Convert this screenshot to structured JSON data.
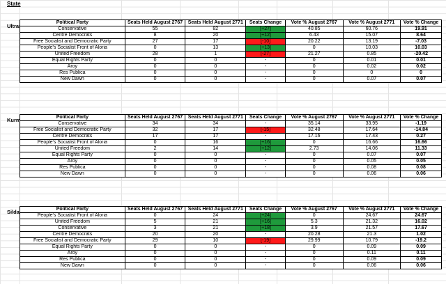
{
  "state_label": "State",
  "headers": [
    "Political Party",
    "Seats Held August 2767",
    "Seats Held August 2771",
    "Seats Change",
    "Vote % August 2767",
    "Vote % August 2771",
    "Vote % Change"
  ],
  "regions": [
    {
      "name": "Ultran",
      "rows": [
        {
          "party": "Conservative",
          "s1": "55",
          "s2": "82",
          "sc": "[+27]",
          "dir": "up",
          "v1": "40.85",
          "v2": "60.76",
          "vc": "19.91"
        },
        {
          "party": "Centre Democrats",
          "s1": "8",
          "s2": "20",
          "sc": "[+12]",
          "dir": "up",
          "v1": "6.43",
          "v2": "15.07",
          "vc": "8.64"
        },
        {
          "party": "Free Socialist and Democratic Party",
          "s1": "27",
          "s2": "17",
          "sc": "[-10]",
          "dir": "down",
          "v1": "20.22",
          "v2": "13.19",
          "vc": "-7.03"
        },
        {
          "party": "People's Socialist Front of Aloria",
          "s1": "0",
          "s2": "13",
          "sc": "[+13]",
          "dir": "up",
          "v1": "0",
          "v2": "10.03",
          "vc": "10.03"
        },
        {
          "party": "United Freedom",
          "s1": "28",
          "s2": "1",
          "sc": "[-27]",
          "dir": "down",
          "v1": "21.27",
          "v2": "0.85",
          "vc": "-20.42"
        },
        {
          "party": "Equal Rights Party",
          "s1": "0",
          "s2": "0",
          "sc": "-",
          "dir": "none",
          "v1": "0",
          "v2": "0.01",
          "vc": "0.01"
        },
        {
          "party": "Aroy",
          "s1": "0",
          "s2": "0",
          "sc": "-",
          "dir": "none",
          "v1": "0",
          "v2": "0.02",
          "vc": "0.02"
        },
        {
          "party": "Res Publica",
          "s1": "0",
          "s2": "0",
          "sc": "-",
          "dir": "none",
          "v1": "0",
          "v2": "0",
          "vc": "0"
        },
        {
          "party": "New Dawn",
          "s1": "0",
          "s2": "0",
          "sc": "-",
          "dir": "none",
          "v1": "0",
          "v2": "0.07",
          "vc": "0.07"
        }
      ]
    },
    {
      "name": "Kurmal",
      "rows": [
        {
          "party": "Conservative",
          "s1": "34",
          "s2": "34",
          "sc": "-",
          "dir": "none",
          "v1": "35.14",
          "v2": "33.95",
          "vc": "-1.19"
        },
        {
          "party": "Free Socialist and Democratic Party",
          "s1": "32",
          "s2": "17",
          "sc": "[-15]",
          "dir": "down",
          "v1": "32.48",
          "v2": "17.64",
          "vc": "-14.84"
        },
        {
          "party": "Centre Democrats",
          "s1": "17",
          "s2": "17",
          "sc": "-",
          "dir": "none",
          "v1": "17.16",
          "v2": "17.43",
          "vc": "0.27"
        },
        {
          "party": "People's Socialist Front of Aloria",
          "s1": "0",
          "s2": "16",
          "sc": "[+16]",
          "dir": "up",
          "v1": "0",
          "v2": "16.66",
          "vc": "16.66"
        },
        {
          "party": "United Freedom",
          "s1": "2",
          "s2": "14",
          "sc": "[+12]",
          "dir": "up",
          "v1": "2.73",
          "v2": "14.06",
          "vc": "11.33"
        },
        {
          "party": "Equal Rights Party",
          "s1": "0",
          "s2": "0",
          "sc": "-",
          "dir": "none",
          "v1": "0",
          "v2": "0.07",
          "vc": "0.07"
        },
        {
          "party": "Aroy",
          "s1": "0",
          "s2": "0",
          "sc": "-",
          "dir": "none",
          "v1": "0",
          "v2": "0.05",
          "vc": "0.05"
        },
        {
          "party": "Res Publica",
          "s1": "0",
          "s2": "0",
          "sc": "-",
          "dir": "none",
          "v1": "0",
          "v2": "0.08",
          "vc": "0.08"
        },
        {
          "party": "New Dawn",
          "s1": "0",
          "s2": "0",
          "sc": "-",
          "dir": "none",
          "v1": "0",
          "v2": "0.06",
          "vc": "0.06"
        }
      ]
    },
    {
      "name": "Sildar",
      "rows": [
        {
          "party": "People's Socialist Front of Aloria",
          "s1": "0",
          "s2": "24",
          "sc": "[+24]",
          "dir": "up",
          "v1": "0",
          "v2": "24.67",
          "vc": "24.67"
        },
        {
          "party": "United Freedom",
          "s1": "5",
          "s2": "21",
          "sc": "[+16]",
          "dir": "up",
          "v1": "5.3",
          "v2": "21.32",
          "vc": "16.02"
        },
        {
          "party": "Conservative",
          "s1": "3",
          "s2": "21",
          "sc": "[+18]",
          "dir": "up",
          "v1": "3.9",
          "v2": "21.57",
          "vc": "17.67"
        },
        {
          "party": "Centre Democrats",
          "s1": "20",
          "s2": "20",
          "sc": "-",
          "dir": "none",
          "v1": "20.28",
          "v2": "21.3",
          "vc": "1.02"
        },
        {
          "party": "Free Socialist and Democratic Party",
          "s1": "29",
          "s2": "10",
          "sc": "[-19]",
          "dir": "down",
          "v1": "29.99",
          "v2": "10.79",
          "vc": "-19.2"
        },
        {
          "party": "Equal Rights Party",
          "s1": "0",
          "s2": "0",
          "sc": "-",
          "dir": "none",
          "v1": "0",
          "v2": "0.09",
          "vc": "0.09"
        },
        {
          "party": "Aroy",
          "s1": "0",
          "s2": "0",
          "sc": "-",
          "dir": "none",
          "v1": "0",
          "v2": "0.11",
          "vc": "0.11"
        },
        {
          "party": "Res Publica",
          "s1": "0",
          "s2": "0",
          "sc": "-",
          "dir": "none",
          "v1": "0",
          "v2": "0.09",
          "vc": "0.09"
        },
        {
          "party": "New Dawn",
          "s1": "0",
          "s2": "0",
          "sc": "-",
          "dir": "none",
          "v1": "0",
          "v2": "0.06",
          "vc": "0.06"
        }
      ]
    }
  ]
}
